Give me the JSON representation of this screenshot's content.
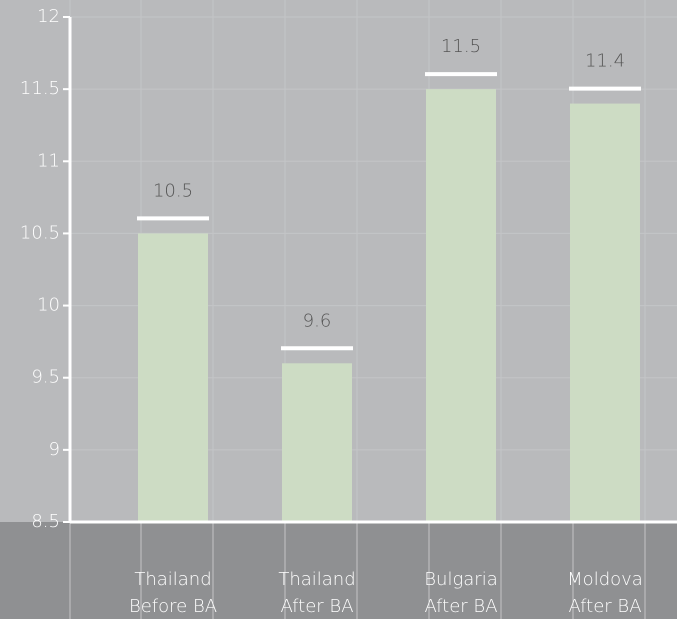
{
  "chart_data": {
    "type": "bar",
    "categories": [
      [
        "Thailand",
        "Before BA"
      ],
      [
        "Thailand",
        "After BA"
      ],
      [
        "Bulgaria",
        "After BA"
      ],
      [
        "Moldova",
        "After BA"
      ]
    ],
    "values": [
      10.5,
      9.6,
      11.5,
      11.4
    ],
    "color": "#cddcc4",
    "ylim": [
      8.5,
      12
    ],
    "yticks": [
      8.5,
      9,
      9.5,
      10,
      10.5,
      11,
      11.5,
      12
    ],
    "grid": true
  }
}
